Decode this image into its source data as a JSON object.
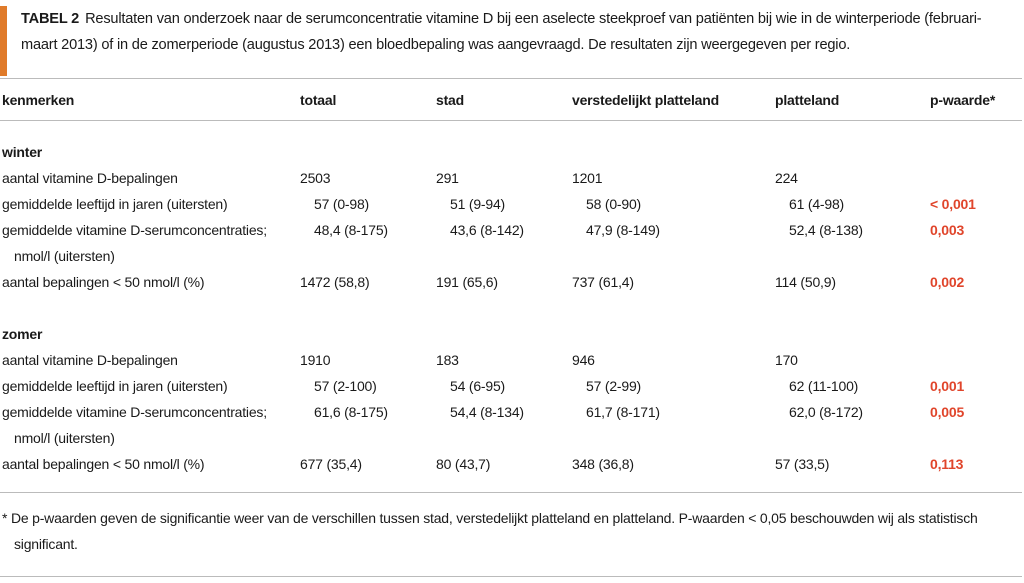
{
  "title": {
    "label": "TABEL 2",
    "text": "Resultaten van onderzoek naar de serumconcentratie vitamine D bij een aselecte steekproef van patiënten bij wie in de winterperiode (februari-maart 2013) of in de zomerperiode (augustus 2013) een bloedbepaling was aangevraagd. De resultaten zijn weergegeven per regio."
  },
  "table": {
    "header": [
      "kenmerken",
      "totaal",
      "stad",
      "verstedelijkt platteland",
      "platteland",
      "p-waarde*"
    ],
    "sections": [
      {
        "name": "winter",
        "rows": [
          [
            [
              "aantal vitamine D-bepalingen"
            ],
            "2503",
            "291",
            "1201",
            "224"
          ],
          [
            [
              "gemiddelde leeftijd in jaren (uitersten)"
            ],
            "57 (0-98)",
            "51 (9-94)",
            "58 (0-90)",
            "61 (4-98)",
            "< 0,001"
          ],
          [
            [
              "gemiddelde vitamine D-serumconcentraties;",
              "nmol/l (uitersten)"
            ],
            "48,4 (8-175)",
            "43,6 (8-142)",
            "47,9 (8-149)",
            "52,4 (8-138)",
            "0,003"
          ],
          [
            [
              "aantal bepalingen < 50 nmol/l (%)"
            ],
            "1472 (58,8)",
            "191 (65,6)",
            "737 (61,4)",
            "114 (50,9)",
            "0,002"
          ]
        ]
      },
      {
        "name": "zomer",
        "rows": [
          [
            [
              "aantal vitamine D-bepalingen"
            ],
            "1910",
            "183",
            "946",
            "170"
          ],
          [
            [
              "gemiddelde leeftijd in jaren (uitersten)"
            ],
            "57 (2-100)",
            "54 (6-95)",
            "57 (2-99)",
            "62 (11-100)",
            "0,001"
          ],
          [
            [
              "gemiddelde vitamine D-serumconcentraties;",
              "nmol/l (uitersten)"
            ],
            "61,6 (8-175)",
            "54,4 (8-134)",
            "61,7 (8-171)",
            "62,0 (8-172)",
            "0,005"
          ],
          [
            [
              "aantal bepalingen < 50 nmol/l (%)"
            ],
            "677 (35,4)",
            "80 (43,7)",
            "348 (36,8)",
            "57 (33,5)",
            "0,113"
          ]
        ]
      }
    ]
  },
  "footnote": "* De p-waarden geven de significantie weer van de verschillen tussen stad, verstedelijkt platteland en platteland. P-waarden < 0,05 beschouwden wij als statistisch significant."
}
